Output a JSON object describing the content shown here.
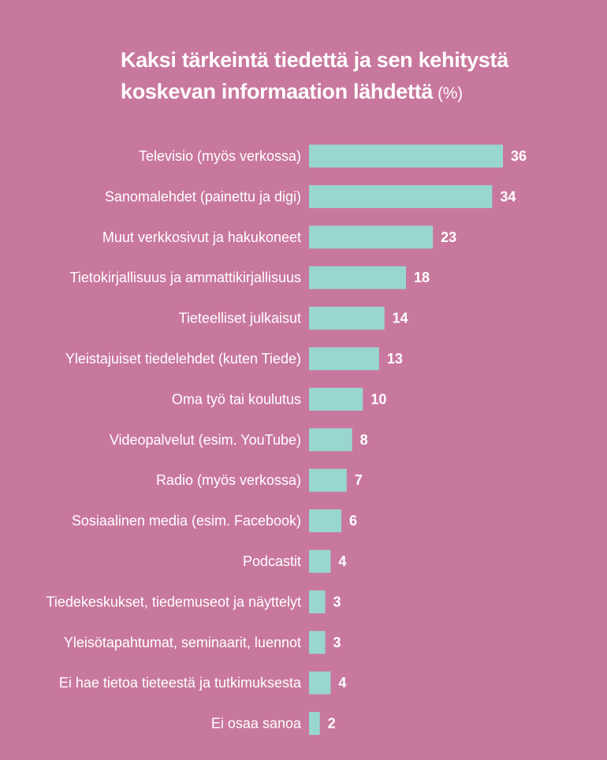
{
  "colors": {
    "background": "#c9789d",
    "bar": "#98d7cf",
    "text": "#ffffff"
  },
  "chart_data": {
    "type": "bar",
    "orientation": "horizontal",
    "title_main": "Kaksi tärkeintä tiedettä ja sen kehitystä koskevan informaation lähdettä",
    "title_unit": "(%)",
    "categories": [
      "Televisio (myös verkossa)",
      "Sanomalehdet (painettu ja digi)",
      "Muut verkkosivut ja hakukoneet",
      "Tietokirjallisuus ja ammattikirjallisuus",
      "Tieteelliset julkaisut",
      "Yleistajuiset tiedelehdet (kuten Tiede)",
      "Oma työ tai koulutus",
      "Videopalvelut (esim. YouTube)",
      "Radio (myös verkossa)",
      "Sosiaalinen media (esim. Facebook)",
      "Podcastit",
      "Tiedekeskukset, tiedemuseot ja näyttelyt",
      "Yleisötapahtumat, seminaarit, luennot",
      "Ei hae tietoa tieteestä ja tutkimuksesta",
      "Ei osaa sanoa"
    ],
    "values": [
      36,
      34,
      23,
      18,
      14,
      13,
      10,
      8,
      7,
      6,
      4,
      3,
      3,
      4,
      2
    ],
    "value_labels": [
      "36",
      "34",
      "23",
      "18",
      "14",
      "13",
      "10",
      "8",
      "7",
      "6",
      "4",
      "3",
      "3",
      "4",
      "2"
    ],
    "xlim": [
      0,
      36
    ],
    "grid": false,
    "legend": "none"
  }
}
